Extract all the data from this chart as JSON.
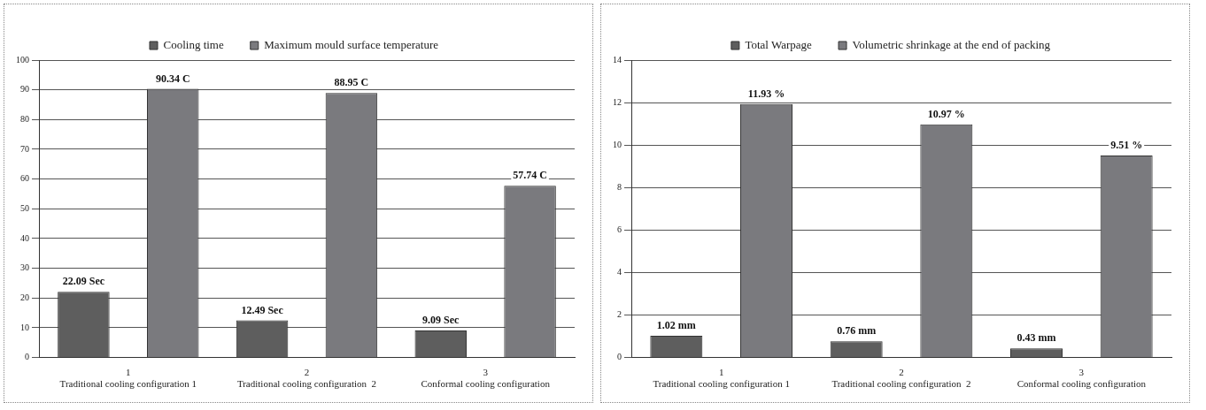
{
  "chart_data": [
    {
      "type": "bar",
      "categories": [
        "1\nTraditional cooling configuration 1",
        "2\nTraditional cooling configuration  2",
        "3\nConformal cooling configuration"
      ],
      "series": [
        {
          "name": "Cooling time",
          "color": "#5e5e5e",
          "values": [
            22.09,
            12.49,
            9.09
          ],
          "value_labels": [
            "22.09 Sec",
            "12.49 Sec",
            "9.09 Sec"
          ]
        },
        {
          "name": "Maximum mould surface temperature",
          "color": "#7a7a7e",
          "values": [
            90.34,
            88.95,
            57.74
          ],
          "value_labels": [
            "90.34 C",
            "88.95 C",
            "57.74 C"
          ]
        }
      ],
      "ylim": [
        0,
        100
      ],
      "yticks": [
        0,
        10,
        20,
        30,
        40,
        50,
        60,
        70,
        80,
        90,
        100
      ],
      "grid": "y",
      "legend": "top"
    },
    {
      "type": "bar",
      "categories": [
        "1\nTraditional cooling configuration 1",
        "2\nTraditional cooling configuration  2",
        "3\nConformal cooling configuration"
      ],
      "series": [
        {
          "name": "Total Warpage",
          "color": "#5e5e5e",
          "values": [
            1.02,
            0.76,
            0.43
          ],
          "value_labels": [
            "1.02 mm",
            "0.76 mm",
            "0.43 mm"
          ]
        },
        {
          "name": "Volumetric shrinkage at the end of packing",
          "color": "#7a7a7e",
          "values": [
            11.93,
            10.97,
            9.51
          ],
          "value_labels": [
            "11.93 %",
            "10.97 %",
            "9.51 %"
          ]
        }
      ],
      "ylim": [
        0,
        14
      ],
      "yticks": [
        0,
        2,
        4,
        6,
        8,
        10,
        12,
        14
      ],
      "grid": "y",
      "legend": "top"
    }
  ]
}
